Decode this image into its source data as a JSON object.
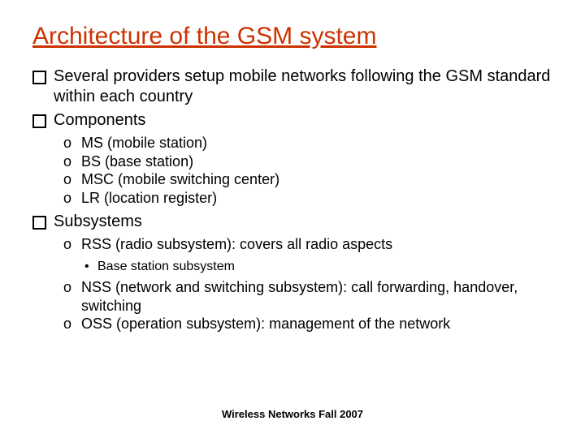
{
  "title": "Architecture of the GSM system",
  "bullets": {
    "b1": "Several providers setup mobile networks following the GSM standard within each country",
    "b2": "Components",
    "b2_sub": {
      "s1": "MS (mobile station)",
      "s2": "BS (base station)",
      "s3": "MSC (mobile switching center)",
      "s4": "LR (location register)"
    },
    "b3": "Subsystems",
    "b3_sub": {
      "s1": "RSS (radio subsystem): covers all radio aspects",
      "s1_sub": {
        "d1": "Base station subsystem"
      },
      "s2": "NSS (network and switching subsystem): call forwarding, handover, switching",
      "s3": "OSS (operation subsystem): management of the network"
    }
  },
  "footer": "Wireless Networks Fall 2007",
  "colors": {
    "title": "#cc3300",
    "text": "#000000",
    "background": "#ffffff"
  }
}
